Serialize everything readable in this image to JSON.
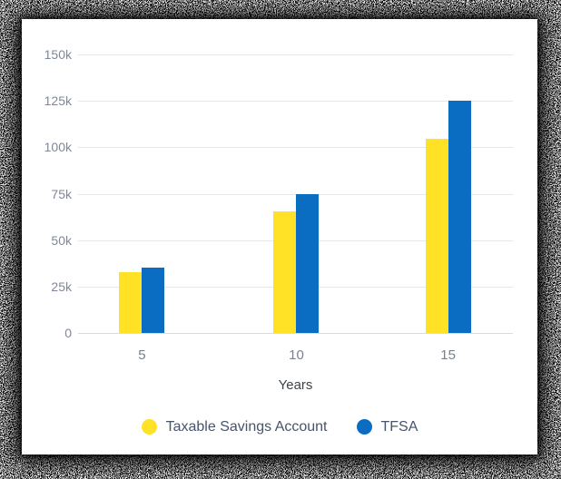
{
  "chart_data": {
    "type": "bar",
    "title": "",
    "categories": [
      "5",
      "10",
      "15"
    ],
    "series": [
      {
        "name": "Taxable Savings Account",
        "color": "#FFE226",
        "values": [
          32500,
          65500,
          104500
        ]
      },
      {
        "name": "TFSA",
        "color": "#0A6DC2",
        "values": [
          35000,
          75000,
          125000
        ]
      }
    ],
    "xlabel": "Years",
    "ylabel": "",
    "ylim": [
      0,
      150000
    ],
    "yticks": [
      {
        "value": 0,
        "label": "0"
      },
      {
        "value": 25000,
        "label": "25k"
      },
      {
        "value": 50000,
        "label": "50k"
      },
      {
        "value": 75000,
        "label": "75k"
      },
      {
        "value": 100000,
        "label": "100k"
      },
      {
        "value": 125000,
        "label": "125k"
      },
      {
        "value": 150000,
        "label": "150k"
      }
    ],
    "grid": true,
    "legend_position": "bottom"
  },
  "colors": {
    "taxable_bar": "#FFE226",
    "tfsa_bar": "#0A6DC2",
    "gridline": "#E4E7EA",
    "baseline": "#D8DCE0",
    "tick_text": "#7F8899",
    "axis_title_text": "#3F444A",
    "legend_text": "#47546A",
    "card_background": "#FFFFFF",
    "surround_noise": "#0A0A0A"
  }
}
